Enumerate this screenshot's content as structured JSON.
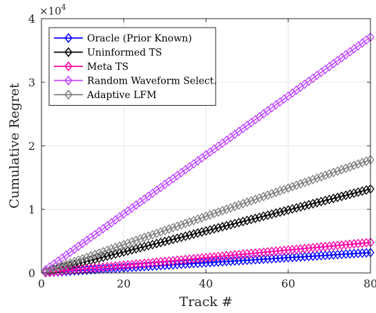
{
  "chart_data": {
    "type": "line",
    "title": "",
    "xlabel": "Track #",
    "ylabel": "Cumulative Regret",
    "y_multiplier_label": "×10",
    "y_multiplier_exponent": "4",
    "xlim": [
      0,
      80
    ],
    "ylim": [
      0,
      4
    ],
    "x_ticks": [
      0,
      20,
      40,
      60,
      80
    ],
    "y_ticks": [
      0,
      1,
      2,
      3,
      4
    ],
    "x_tick_labels": [
      "0",
      "20",
      "40",
      "60",
      "80"
    ],
    "y_tick_labels": [
      "0",
      "1",
      "2",
      "3",
      "4"
    ],
    "grid": true,
    "legend_position": "top-left",
    "marker": "diamond",
    "x_start": 1,
    "x_end": 80,
    "series": [
      {
        "name": "Oracle (Prior Known)",
        "color": "#0000ff",
        "y_start": 0.004,
        "y_end": 0.32
      },
      {
        "name": "Uninformed TS",
        "color": "#000000",
        "y_start": 0.017,
        "y_end": 1.32
      },
      {
        "name": "Meta TS",
        "color": "#ff00aa",
        "y_start": 0.006,
        "y_end": 0.48
      },
      {
        "name": "Random Waveform Select.",
        "color": "#c040ff",
        "y_start": 0.047,
        "y_end": 3.71
      },
      {
        "name": "Adaptive LFM",
        "color": "#808080",
        "y_start": 0.022,
        "y_end": 1.78
      }
    ]
  }
}
